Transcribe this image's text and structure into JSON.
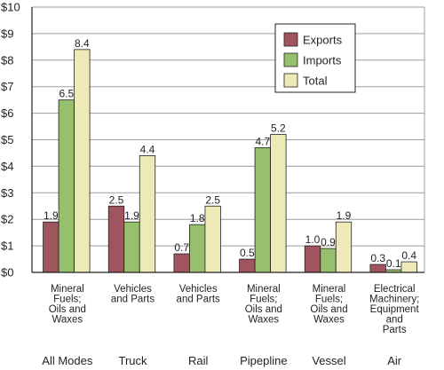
{
  "chart_data": {
    "type": "bar",
    "ylim": [
      0,
      10
    ],
    "y_ticks": [
      "$0",
      "$1",
      "$2",
      "$3",
      "$4",
      "$5",
      "$6",
      "$7",
      "$8",
      "$9",
      "$10"
    ],
    "grid": true,
    "legend_position": "top-right",
    "categories": [
      {
        "mode": "All Modes",
        "commodity": [
          "Mineral",
          "Fuels;",
          "Oils and",
          "Waxes"
        ]
      },
      {
        "mode": "Truck",
        "commodity": [
          "Vehicles",
          "and Parts"
        ]
      },
      {
        "mode": "Rail",
        "commodity": [
          "Vehicles",
          "and Parts"
        ]
      },
      {
        "mode": "Pipepline",
        "commodity": [
          "Mineral",
          "Fuels;",
          "Oils and",
          "Waxes"
        ]
      },
      {
        "mode": "Vessel",
        "commodity": [
          "Mineral",
          "Fuels;",
          "Oils and",
          "Waxes"
        ]
      },
      {
        "mode": "Air",
        "commodity": [
          "Electrical",
          "Machinery;",
          "Equipment",
          "and",
          "Parts"
        ]
      }
    ],
    "series": [
      {
        "name": "Exports",
        "color": "#a0545e",
        "values": [
          1.9,
          2.5,
          0.7,
          0.5,
          1.0,
          0.3
        ],
        "labels": [
          "1.9",
          "2.5",
          "0.7",
          "0.5",
          "1.0",
          "0.3"
        ]
      },
      {
        "name": "Imports",
        "color": "#96c06e",
        "values": [
          6.5,
          1.9,
          1.8,
          4.7,
          0.9,
          0.1
        ],
        "labels": [
          "6.5",
          "1.9",
          "1.8",
          "4.7",
          "0.9",
          "0.1"
        ]
      },
      {
        "name": "Total",
        "color": "#eeeab8",
        "values": [
          8.4,
          4.4,
          2.5,
          5.2,
          1.9,
          0.4
        ],
        "labels": [
          "8.4",
          "4.4",
          "2.5",
          "5.2",
          "1.9",
          "0.4"
        ]
      }
    ]
  }
}
